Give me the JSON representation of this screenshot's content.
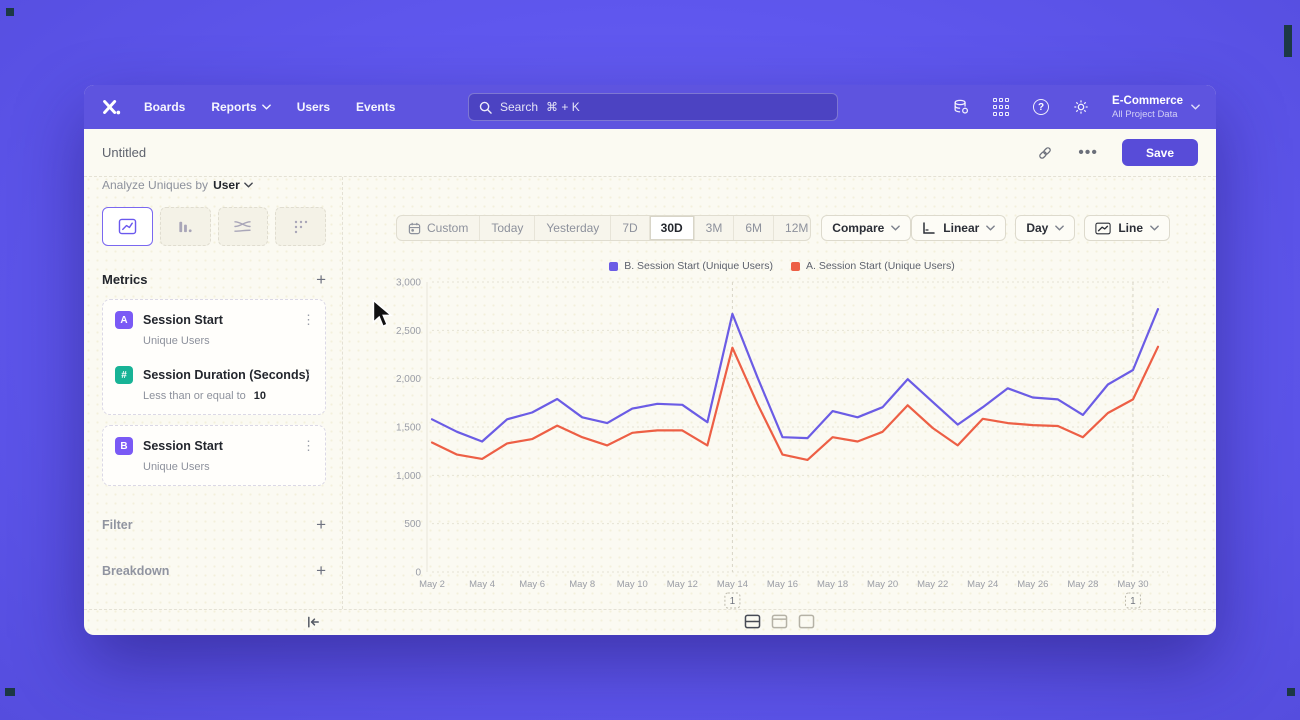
{
  "nav": {
    "logo": "mixpanel-logo",
    "items": [
      {
        "label": "Boards",
        "chevron": false
      },
      {
        "label": "Reports",
        "chevron": true
      },
      {
        "label": "Users",
        "chevron": false
      },
      {
        "label": "Events",
        "chevron": false
      }
    ],
    "search": {
      "placeholder": "Search",
      "shortcut": "⌘ + K"
    },
    "right_icons": [
      "data-connections-icon",
      "apps-grid-icon",
      "help-icon",
      "settings-gear-icon"
    ],
    "project": {
      "name": "E-Commerce",
      "subtitle": "All Project Data"
    }
  },
  "titlebar": {
    "title": "Untitled",
    "menu_label": "•••",
    "save_label": "Save"
  },
  "sidebar": {
    "analyze": {
      "prefix": "Analyze Uniques by",
      "value": "User"
    },
    "chart_tabs": [
      "insights-line",
      "bar",
      "flow",
      "retention"
    ],
    "metrics_header": {
      "label": "Metrics",
      "add_label": "+"
    },
    "cards": [
      {
        "rows": [
          {
            "badge": "A",
            "badge_color": "#7a5af5",
            "title": "Session Start",
            "subtitle": "Unique Users",
            "value": ""
          },
          {
            "badge": "#",
            "badge_color": "#18b396",
            "title": "Session Duration (Seconds)",
            "subtitle": "Less than or equal to",
            "value": "10"
          }
        ]
      },
      {
        "rows": [
          {
            "badge": "B",
            "badge_color": "#7a5af5",
            "title": "Session Start",
            "subtitle": "Unique Users",
            "value": ""
          }
        ]
      }
    ],
    "sections": [
      {
        "label": "Filter",
        "add_label": "+"
      },
      {
        "label": "Breakdown",
        "add_label": "+"
      }
    ]
  },
  "controls": {
    "date_ranges": [
      "Custom",
      "Today",
      "Yesterday",
      "7D",
      "30D",
      "3M",
      "6M",
      "12M"
    ],
    "active_range": "30D",
    "compare_label": "Compare",
    "scale_label": "Linear",
    "interval_label": "Day",
    "chart_type_label": "Line"
  },
  "chart_data": {
    "type": "line",
    "title": "",
    "x": [
      "May 2",
      "May 3",
      "May 4",
      "May 5",
      "May 6",
      "May 7",
      "May 8",
      "May 9",
      "May 10",
      "May 11",
      "May 12",
      "May 13",
      "May 14",
      "May 15",
      "May 16",
      "May 17",
      "May 18",
      "May 19",
      "May 20",
      "May 21",
      "May 22",
      "May 23",
      "May 24",
      "May 25",
      "May 26",
      "May 27",
      "May 28",
      "May 29",
      "May 30",
      "May 31"
    ],
    "x_tick_every": 2,
    "ylim": [
      0,
      3000
    ],
    "yticks": [
      0,
      500,
      1000,
      1500,
      2000,
      2500,
      3000
    ],
    "grid": "horizontal-dotted",
    "legend_position": "top-center",
    "series": [
      {
        "name": "B. Session Start (Unique Users)",
        "color": "#6b5ce5",
        "values": [
          1580,
          1450,
          1350,
          1580,
          1650,
          1790,
          1600,
          1540,
          1690,
          1740,
          1730,
          1550,
          2670,
          2015,
          1395,
          1385,
          1665,
          1600,
          1705,
          1995,
          1760,
          1525,
          1705,
          1900,
          1805,
          1785,
          1625,
          1940,
          2090,
          2720
        ]
      },
      {
        "name": "A. Session Start (Unique Users)",
        "color": "#ed5f45",
        "values": [
          1340,
          1215,
          1170,
          1330,
          1375,
          1515,
          1395,
          1310,
          1440,
          1465,
          1465,
          1310,
          2320,
          1740,
          1215,
          1160,
          1395,
          1350,
          1450,
          1725,
          1490,
          1310,
          1585,
          1540,
          1520,
          1510,
          1395,
          1645,
          1785,
          2330
        ]
      }
    ],
    "annotations": [
      {
        "x": "May 14",
        "label": "1"
      },
      {
        "x": "May 30",
        "label": "1"
      }
    ]
  },
  "footer": {
    "layout_toggles": [
      "split-view",
      "header-view",
      "full-view"
    ],
    "active_toggle": "split-view"
  },
  "colors": {
    "accent": "#5e54df",
    "save": "#584cd8",
    "series_b": "#6b5ce5",
    "series_a": "#ed5f45",
    "badge_purple": "#7a5af5",
    "badge_teal": "#18b396"
  }
}
